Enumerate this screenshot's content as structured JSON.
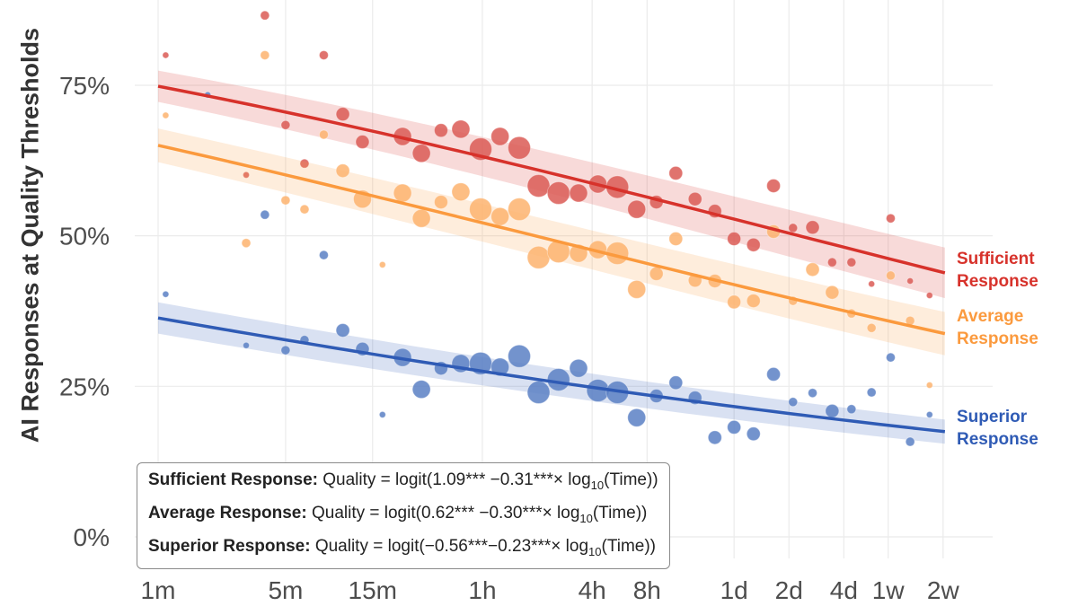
{
  "chart_data": {
    "type": "scatter",
    "ylabel": "AI Responses at Quality Thresholds",
    "xlabel": "",
    "x_scale": "log",
    "x_unit": "minutes",
    "x_ticks": [
      {
        "label": "1m",
        "value": 1
      },
      {
        "label": "5m",
        "value": 5
      },
      {
        "label": "15m",
        "value": 15
      },
      {
        "label": "1h",
        "value": 60
      },
      {
        "label": "4h",
        "value": 240
      },
      {
        "label": "8h",
        "value": 480
      },
      {
        "label": "1d",
        "value": 1440
      },
      {
        "label": "2d",
        "value": 2880
      },
      {
        "label": "4d",
        "value": 5760
      },
      {
        "label": "1w",
        "value": 10080
      },
      {
        "label": "2w",
        "value": 20160
      }
    ],
    "y_ticks": [
      {
        "label": "0%",
        "value": 0
      },
      {
        "label": "25%",
        "value": 25
      },
      {
        "label": "50%",
        "value": 50
      },
      {
        "label": "75%",
        "value": 75
      }
    ],
    "ylim": [
      0,
      86
    ],
    "grid": true,
    "point_format": [
      "time_minutes",
      "percent",
      "relative_size"
    ],
    "series": [
      {
        "name": "Sufficient Response",
        "label_lines": [
          "Sufficient",
          "Response"
        ],
        "color": "#d7322b",
        "point_color": "#db5a55",
        "fit": {
          "intercept": 1.09,
          "slope": -0.31
        },
        "ci_halfwidth_pct": [
          2.6,
          4.2
        ],
        "points": [
          [
            1.1,
            80,
            1
          ],
          [
            3.85,
            86.6,
            2
          ],
          [
            8.1,
            80,
            2
          ],
          [
            10.3,
            70.2,
            3
          ],
          [
            5,
            68.4,
            2
          ],
          [
            6.35,
            62,
            2
          ],
          [
            3.04,
            60.1,
            1
          ],
          [
            13.2,
            65.6,
            3
          ],
          [
            21.9,
            66.5,
            4
          ],
          [
            27.8,
            63.7,
            4
          ],
          [
            35.6,
            67.5,
            3
          ],
          [
            45.7,
            67.7,
            4
          ],
          [
            58.7,
            64.4,
            5
          ],
          [
            75,
            66.5,
            4
          ],
          [
            95.6,
            64.6,
            5
          ],
          [
            122,
            58.3,
            5
          ],
          [
            157,
            57.1,
            5
          ],
          [
            202,
            57.1,
            4
          ],
          [
            258,
            58.6,
            4
          ],
          [
            330,
            58.1,
            5
          ],
          [
            421,
            54.4,
            4
          ],
          [
            540,
            55.6,
            3
          ],
          [
            690,
            60.4,
            3
          ],
          [
            880,
            56.1,
            3
          ],
          [
            1130,
            54.1,
            3
          ],
          [
            1440,
            49.5,
            3
          ],
          [
            1840,
            48.5,
            3
          ],
          [
            2370,
            58.3,
            3
          ],
          [
            3030,
            51.3,
            2
          ],
          [
            3880,
            51.4,
            3
          ],
          [
            4970,
            45.6,
            2
          ],
          [
            6340,
            45.6,
            2
          ],
          [
            8170,
            42,
            1
          ],
          [
            10400,
            52.9,
            2
          ],
          [
            13300,
            42.5,
            1
          ],
          [
            17000,
            40.1,
            1
          ]
        ]
      },
      {
        "name": "Average Response",
        "label_lines": [
          "Average",
          "Response"
        ],
        "color": "#fb9a3e",
        "point_color": "#fdb36e",
        "fit": {
          "intercept": 0.62,
          "slope": -0.3
        },
        "ci_halfwidth_pct": [
          2.8,
          3.6
        ],
        "points": [
          [
            1.1,
            70,
            1
          ],
          [
            3.85,
            80,
            2
          ],
          [
            8.1,
            66.8,
            2
          ],
          [
            3.04,
            48.8,
            2
          ],
          [
            5,
            55.9,
            2
          ],
          [
            6.35,
            54.4,
            2
          ],
          [
            10.3,
            60.8,
            3
          ],
          [
            13.2,
            56.1,
            4
          ],
          [
            21.9,
            57.1,
            4
          ],
          [
            27.8,
            52.9,
            4
          ],
          [
            35.6,
            55.6,
            3
          ],
          [
            45.7,
            57.3,
            4
          ],
          [
            58.7,
            54.4,
            5
          ],
          [
            75,
            53.2,
            4
          ],
          [
            95.6,
            54.4,
            5
          ],
          [
            122,
            46.4,
            5
          ],
          [
            157,
            47.4,
            5
          ],
          [
            202,
            47.1,
            4
          ],
          [
            258,
            47.7,
            4
          ],
          [
            330,
            47.1,
            5
          ],
          [
            421,
            41.1,
            4
          ],
          [
            540,
            43.7,
            3
          ],
          [
            690,
            49.5,
            3
          ],
          [
            880,
            42.6,
            3
          ],
          [
            1130,
            42.5,
            3
          ],
          [
            1440,
            39,
            3
          ],
          [
            1840,
            39.2,
            3
          ],
          [
            2370,
            50.7,
            3
          ],
          [
            3030,
            39.2,
            2
          ],
          [
            3880,
            44.4,
            3
          ],
          [
            4970,
            40.6,
            3
          ],
          [
            6340,
            37.1,
            2
          ],
          [
            8170,
            34.7,
            2
          ],
          [
            10400,
            43.4,
            2
          ],
          [
            13300,
            35.9,
            2
          ],
          [
            17000,
            25.2,
            1
          ],
          [
            17,
            45.2,
            1
          ]
        ]
      },
      {
        "name": "Superior Response",
        "label_lines": [
          "Superior",
          "Response"
        ],
        "color": "#2f5bb5",
        "point_color": "#5a80c4",
        "fit": {
          "intercept": -0.56,
          "slope": -0.23
        },
        "ci_halfwidth_pct": [
          2.6,
          2.0
        ],
        "points": [
          [
            1.1,
            40.3,
            1
          ],
          [
            1.87,
            73.4,
            1
          ],
          [
            3.85,
            53.5,
            2
          ],
          [
            8.1,
            46.8,
            2
          ],
          [
            3.04,
            31.8,
            1
          ],
          [
            5,
            31,
            2
          ],
          [
            6.35,
            32.7,
            2
          ],
          [
            10.3,
            34.3,
            3
          ],
          [
            13.2,
            31.2,
            3
          ],
          [
            17,
            20.3,
            1
          ],
          [
            21.9,
            29.8,
            4
          ],
          [
            27.8,
            24.5,
            4
          ],
          [
            35.6,
            28,
            3
          ],
          [
            45.7,
            28.8,
            4
          ],
          [
            58.7,
            28.8,
            5
          ],
          [
            75,
            28.2,
            4
          ],
          [
            95.6,
            30,
            5
          ],
          [
            122,
            24,
            5
          ],
          [
            157,
            26.1,
            5
          ],
          [
            202,
            28,
            4
          ],
          [
            258,
            24.3,
            5
          ],
          [
            330,
            24,
            5
          ],
          [
            421,
            19.8,
            4
          ],
          [
            540,
            23.4,
            3
          ],
          [
            690,
            25.6,
            3
          ],
          [
            880,
            23.1,
            3
          ],
          [
            1130,
            16.5,
            3
          ],
          [
            1440,
            18.2,
            3
          ],
          [
            1840,
            17.1,
            3
          ],
          [
            2370,
            27,
            3
          ],
          [
            3030,
            22.4,
            2
          ],
          [
            3880,
            23.9,
            2
          ],
          [
            4970,
            20.9,
            3
          ],
          [
            6340,
            21.2,
            2
          ],
          [
            8170,
            24,
            2
          ],
          [
            10400,
            29.8,
            2
          ],
          [
            13300,
            15.8,
            2
          ],
          [
            17000,
            20.3,
            1
          ]
        ]
      }
    ],
    "equations": [
      {
        "name": "Sufficient Response:",
        "formula_pre": "Quality = logit(1.09*** −0.31***× log",
        "sub": "10",
        "formula_post": "(Time))"
      },
      {
        "name": "Average Response:",
        "formula_pre": "Quality = logit(0.62*** −0.30***× log",
        "sub": "10",
        "formula_post": "(Time))"
      },
      {
        "name": "Superior Response:",
        "formula_pre": "Quality = logit(−0.56***−0.23***× log",
        "sub": "10",
        "formula_post": "(Time))"
      }
    ]
  }
}
